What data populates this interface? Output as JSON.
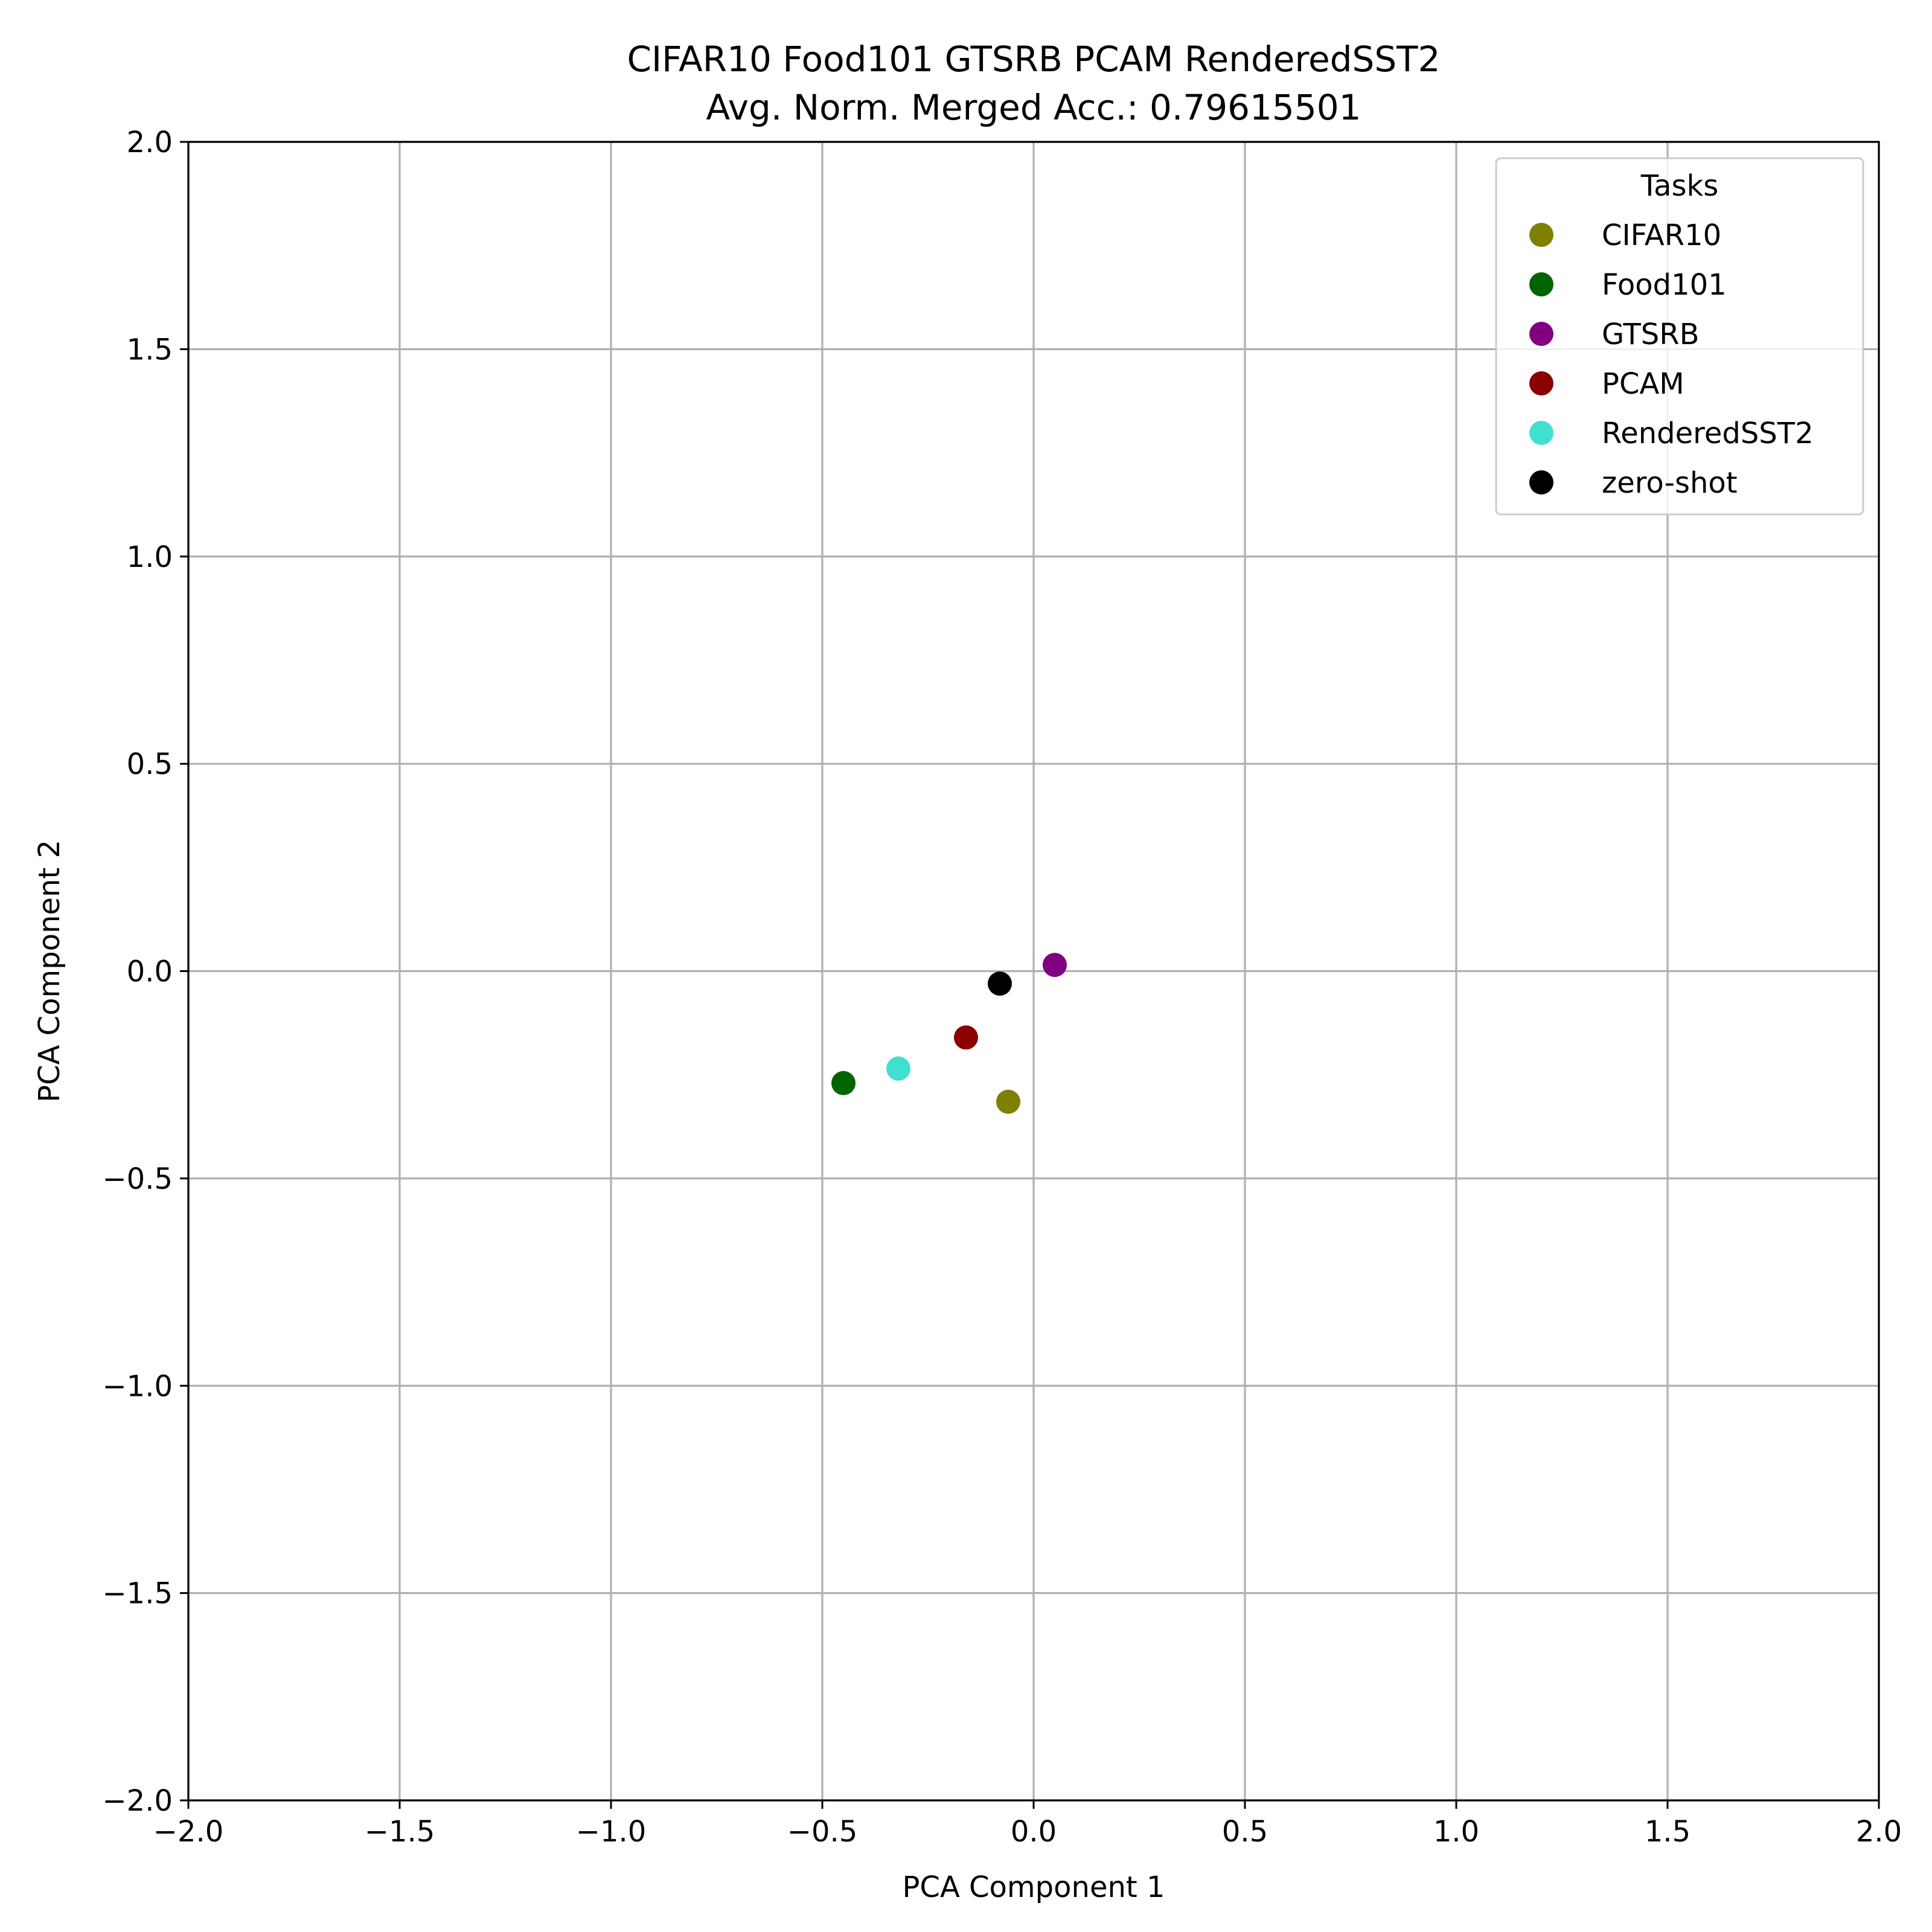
{
  "chart_data": {
    "type": "scatter",
    "title": "CIFAR10 Food101 GTSRB PCAM RenderedSST2",
    "subtitle": "Avg. Norm. Merged Acc.: 0.79615501",
    "xlabel": "PCA Component 1",
    "ylabel": "PCA Component 2",
    "xlim": [
      -2.0,
      2.0
    ],
    "ylim": [
      -2.0,
      2.0
    ],
    "xticks": [
      "−2.0",
      "−1.5",
      "−1.0",
      "−0.5",
      "0.0",
      "0.5",
      "1.0",
      "1.5",
      "2.0"
    ],
    "yticks": [
      "−2.0",
      "−1.5",
      "−1.0",
      "−0.5",
      "0.0",
      "0.5",
      "1.0",
      "1.5",
      "2.0"
    ],
    "grid": true,
    "legend_title": "Tasks",
    "legend_position": "top-right",
    "series": [
      {
        "name": "CIFAR10",
        "color": "#808000",
        "x": [
          -0.06
        ],
        "y": [
          -0.315
        ]
      },
      {
        "name": "Food101",
        "color": "#006400",
        "x": [
          -0.45
        ],
        "y": [
          -0.27
        ]
      },
      {
        "name": "GTSRB",
        "color": "#800080",
        "x": [
          0.05
        ],
        "y": [
          0.015
        ]
      },
      {
        "name": "PCAM",
        "color": "#8b0000",
        "x": [
          -0.16
        ],
        "y": [
          -0.16
        ]
      },
      {
        "name": "RenderedSST2",
        "color": "#40e0d0",
        "x": [
          -0.32
        ],
        "y": [
          -0.235
        ]
      },
      {
        "name": "zero-shot",
        "color": "#000000",
        "x": [
          -0.08
        ],
        "y": [
          -0.03
        ]
      }
    ]
  }
}
